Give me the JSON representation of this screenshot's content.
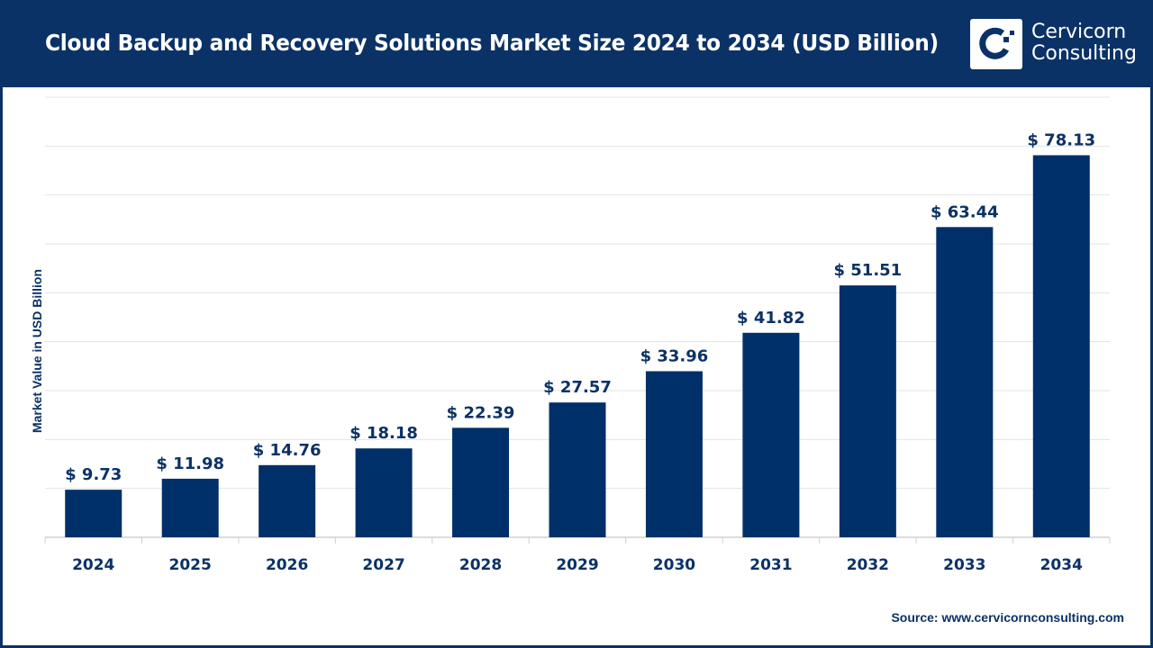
{
  "header": {
    "title": "Cloud Backup and Recovery Solutions Market Size 2024 to 2034 (USD Billion)"
  },
  "logo": {
    "line1": "Cervicorn",
    "line2": "Consulting"
  },
  "source": "Source: www.cervicornconsulting.com",
  "colors": {
    "bar": "#003069",
    "header": "#0b3266",
    "grid": "#e3e3e3"
  },
  "chart_data": {
    "type": "bar",
    "title": "Cloud Backup and Recovery Solutions Market Size 2024 to 2034 (USD Billion)",
    "xlabel": "",
    "ylabel": "Market Value in USD Billion",
    "ylim": [
      0,
      90
    ],
    "grid": true,
    "y_axis_tick_labels_shown": false,
    "categories": [
      "2024",
      "2025",
      "2026",
      "2027",
      "2028",
      "2029",
      "2030",
      "2031",
      "2032",
      "2033",
      "2034"
    ],
    "values": [
      9.73,
      11.98,
      14.76,
      18.18,
      22.39,
      27.57,
      33.96,
      41.82,
      51.51,
      63.44,
      78.13
    ],
    "data_labels": [
      "$ 9.73",
      "$ 11.98",
      "$ 14.76",
      "$ 18.18",
      "$ 22.39",
      "$ 27.57",
      "$ 33.96",
      "$ 41.82",
      "$ 51.51",
      "$ 63.44",
      "$ 78.13"
    ]
  }
}
